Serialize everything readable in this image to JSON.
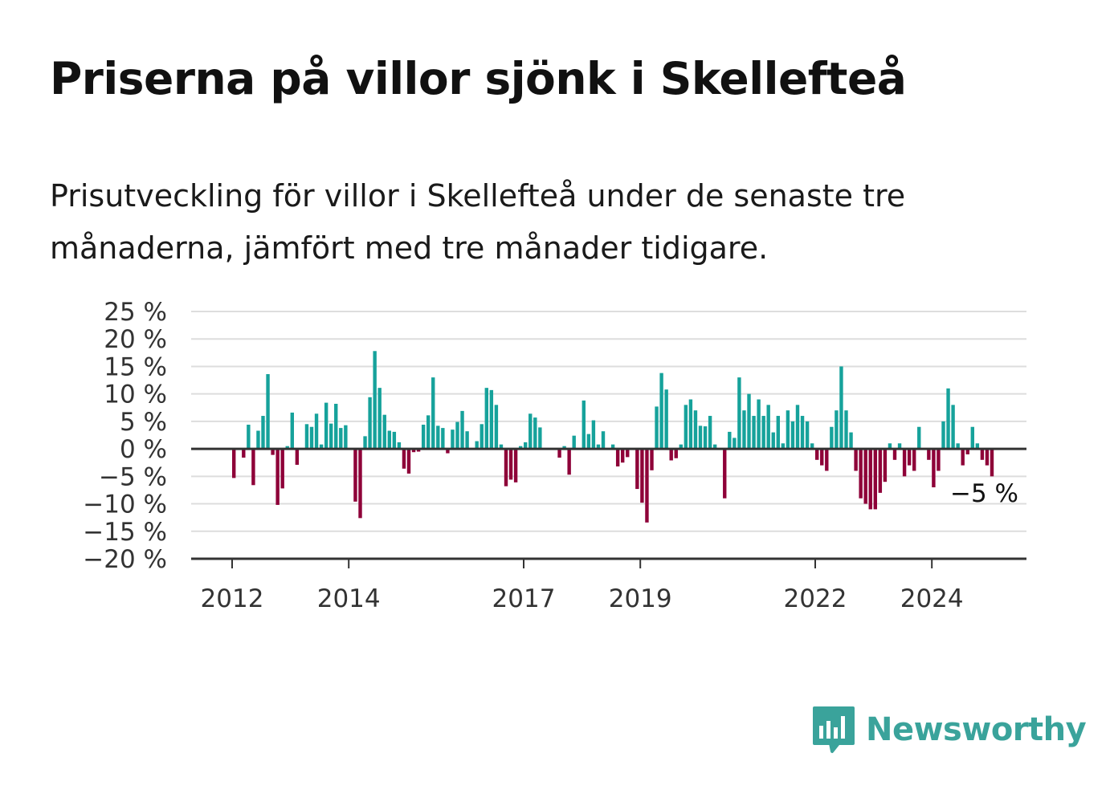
{
  "title": "Priserna på villor sjönk i Skellefteå",
  "subtitle": "Prisutveckling för villor i Skellefteå under de senaste tre månaderna, jämfört med tre månader tidigare.",
  "brand": {
    "name": "Newsworthy",
    "color": "#3aa39b",
    "icon": "bar-chart-speech-bubble-icon"
  },
  "colors": {
    "positive": "#16a29b",
    "negative": "#8e0038",
    "axis": "#333333",
    "grid": "#dddddd"
  },
  "chart_data": {
    "type": "bar",
    "ylim": [
      -20,
      25
    ],
    "yticks": [
      25,
      20,
      15,
      10,
      5,
      0,
      -5,
      -10,
      -15,
      -20
    ],
    "ytick_labels": [
      "25 %",
      "20 %",
      "15 %",
      "10 %",
      "5 %",
      "0 %",
      "−5 %",
      "−10 %",
      "−15 %",
      "−20 %"
    ],
    "xticks": [
      2012,
      2014,
      2017,
      2019,
      2022,
      2024
    ],
    "start_year": 2012,
    "grid": true,
    "annotation": "−5 %",
    "values": [
      -5.3,
      0,
      -1.6,
      4.4,
      -6.6,
      3.3,
      6.0,
      13.6,
      -1.1,
      -10.2,
      -7.2,
      0.5,
      6.6,
      -2.9,
      0,
      4.5,
      4.0,
      6.4,
      0.8,
      8.4,
      4.6,
      8.2,
      3.8,
      4.3,
      0,
      -9.6,
      -12.6,
      2.3,
      9.4,
      17.8,
      11.1,
      6.2,
      3.3,
      3.1,
      1.2,
      -3.6,
      -4.5,
      -0.6,
      -0.5,
      4.4,
      6.1,
      13.0,
      4.2,
      3.8,
      -0.8,
      3.5,
      4.9,
      6.9,
      3.2,
      0,
      1.4,
      4.5,
      11.1,
      10.7,
      8.0,
      0.8,
      -6.8,
      -5.6,
      -6.1,
      0.5,
      1.2,
      6.4,
      5.7,
      3.9,
      0,
      0,
      0,
      -1.6,
      0.5,
      -4.7,
      2.4,
      0,
      8.8,
      2.7,
      5.2,
      0.8,
      3.2,
      0,
      0.8,
      -3.2,
      -2.5,
      -1.5,
      0,
      -7.3,
      -9.8,
      -13.4,
      -3.9,
      7.7,
      13.8,
      10.8,
      -2.1,
      -1.7,
      0.8,
      8.0,
      9.0,
      7.0,
      4.2,
      4.1,
      6.0,
      0.8,
      0,
      -9.0,
      3.1,
      2.0,
      13.0,
      7.0,
      10.0,
      6.0,
      9.0,
      6.0,
      8.0,
      3.0,
      6.0,
      1.0,
      7.0,
      5.0,
      8.0,
      6.0,
      5.0,
      1.0,
      -2.0,
      -3.0,
      -4.0,
      4.0,
      7.0,
      15.0,
      7.0,
      3.0,
      -4.0,
      -9.0,
      -10.0,
      -11.0,
      -11.0,
      -8.0,
      -6.0,
      1.0,
      -2.0,
      1.0,
      -5.0,
      -3.0,
      -4.0,
      4.0,
      0,
      -2.0,
      -7.0,
      -4.0,
      5.0,
      11.0,
      8.0,
      1.0,
      -3.0,
      -1.0,
      4.0,
      1.0,
      -2.0,
      -3.0,
      -5.0
    ]
  }
}
